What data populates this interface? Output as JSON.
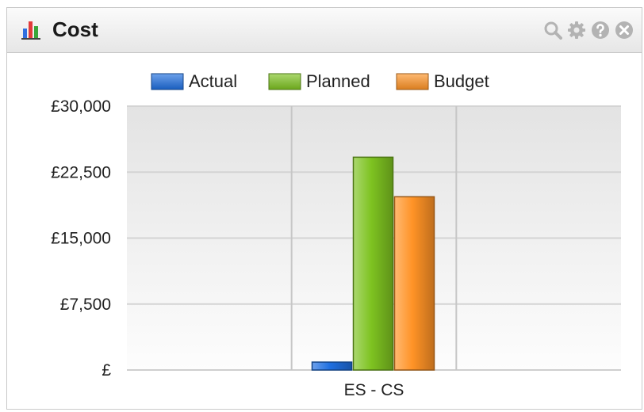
{
  "widget": {
    "title": "Cost",
    "icons": [
      "bar-chart-icon",
      "search-icon",
      "gear-icon",
      "help-icon",
      "close-icon"
    ]
  },
  "chart_data": {
    "type": "bar",
    "categories": [
      "",
      "ES - CS",
      ""
    ],
    "series": [
      {
        "name": "Actual",
        "color": "#1f6fe0",
        "values": [
          0,
          900,
          0
        ]
      },
      {
        "name": "Planned",
        "color": "#7ec321",
        "values": [
          0,
          24200,
          0
        ]
      },
      {
        "name": "Budget",
        "color": "#ff9326",
        "values": [
          0,
          19700,
          0
        ]
      }
    ],
    "ylim": [
      0,
      30000
    ],
    "yticks": [
      0,
      7500,
      15000,
      22500,
      30000
    ],
    "ytick_labels": [
      "£",
      "£7,500",
      "£15,000",
      "£22,500",
      "£30,000"
    ],
    "legend_position": "top",
    "grid": true,
    "title": "",
    "xlabel": "",
    "ylabel": ""
  }
}
